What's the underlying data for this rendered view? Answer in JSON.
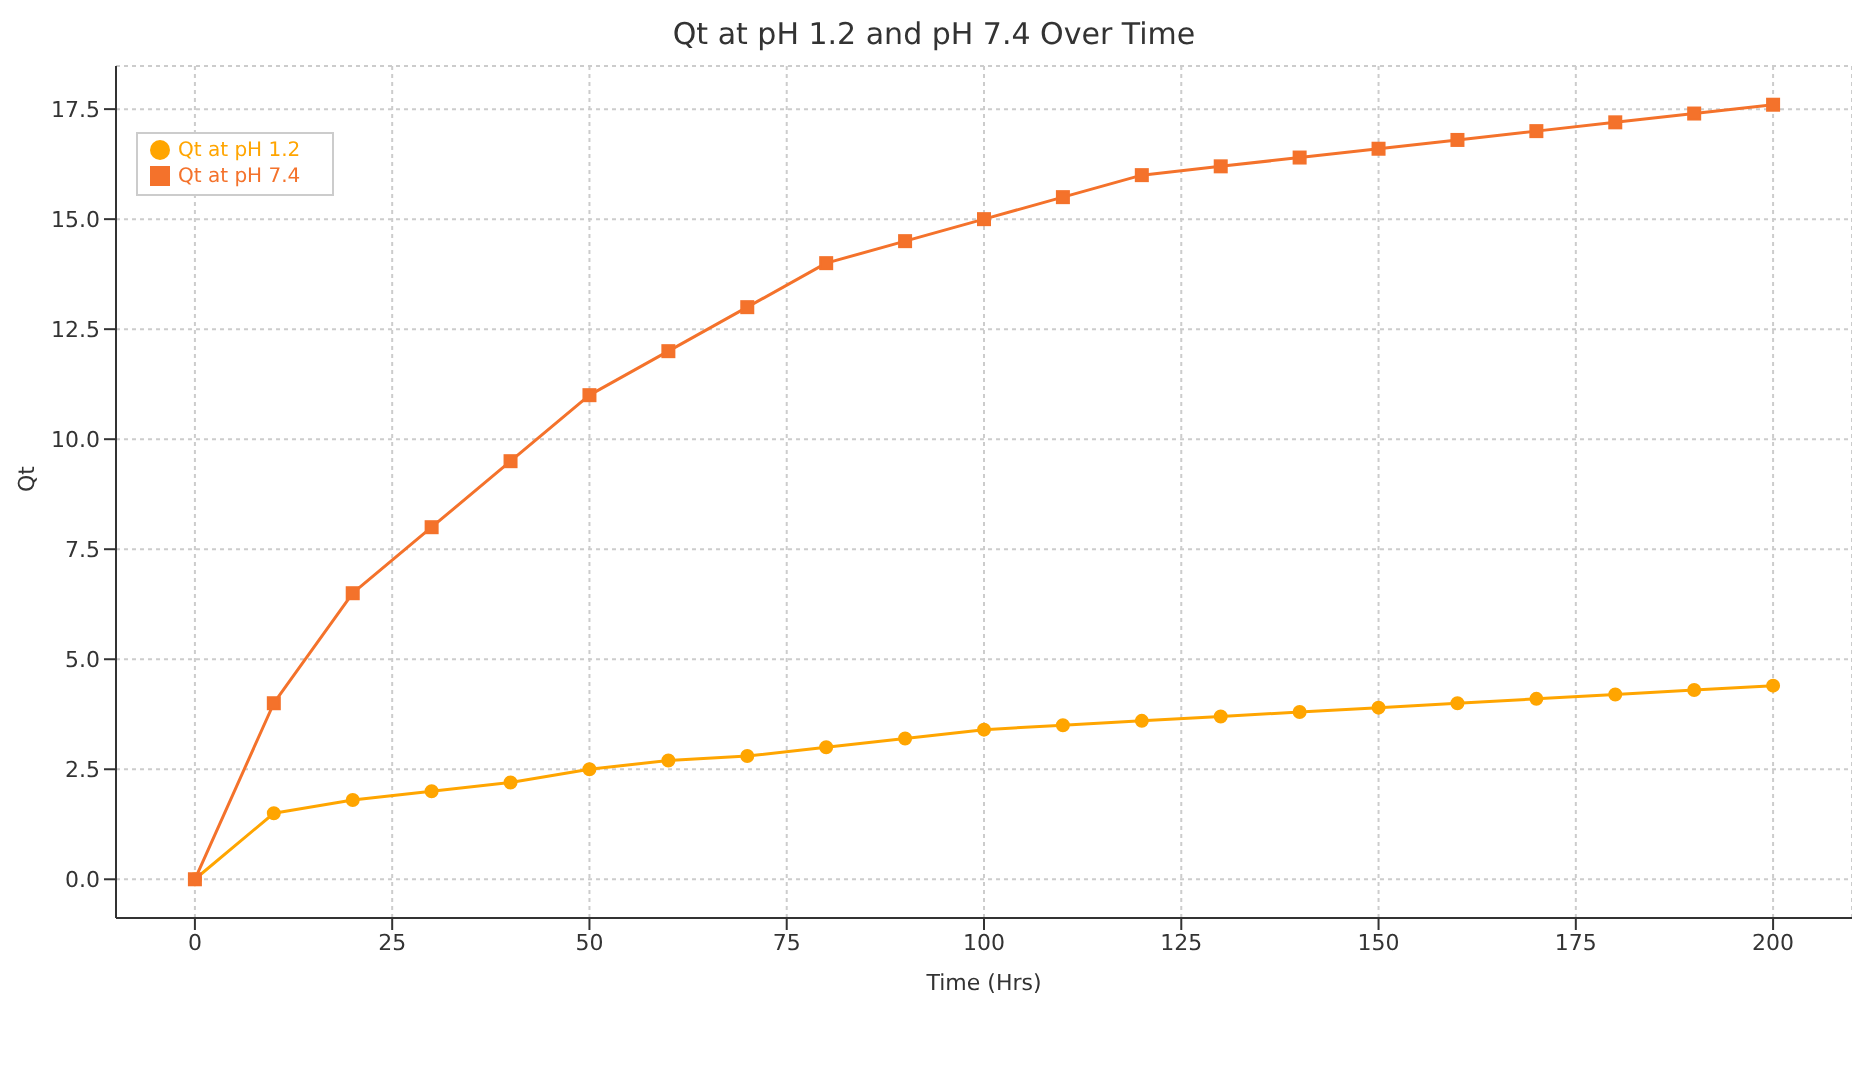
{
  "chart_data": {
    "type": "line",
    "title": "Qt at pH 1.2 and pH 7.4 Over Time",
    "xlabel": "Time (Hrs)",
    "ylabel": "Qt",
    "x": [
      0,
      10,
      20,
      30,
      40,
      50,
      60,
      70,
      80,
      90,
      100,
      110,
      120,
      130,
      140,
      150,
      160,
      170,
      180,
      190,
      200
    ],
    "series": [
      {
        "name": "Qt at pH 1.2",
        "color": "#ffa500",
        "marker": "circle",
        "values": [
          0,
          1.5,
          1.8,
          2.0,
          2.2,
          2.5,
          2.7,
          2.8,
          3.0,
          3.2,
          3.4,
          3.5,
          3.6,
          3.7,
          3.8,
          3.9,
          4.0,
          4.1,
          4.2,
          4.3,
          4.4
        ]
      },
      {
        "name": "Qt at pH 7.4",
        "color": "#f4722b",
        "marker": "square",
        "values": [
          0,
          4,
          6.5,
          8,
          9.5,
          11,
          12,
          13,
          14,
          14.5,
          15,
          15.5,
          16,
          16.2,
          16.4,
          16.6,
          16.8,
          17.0,
          17.2,
          17.4,
          17.6
        ]
      }
    ],
    "xlim": [
      -10,
      210
    ],
    "xticks": [
      0,
      25,
      50,
      75,
      100,
      125,
      150,
      175,
      200
    ],
    "ylim": [
      -0.88,
      18.48
    ],
    "yticks": [
      {
        "value": 0,
        "label": "0.0"
      },
      {
        "value": 2.5,
        "label": "2.5"
      },
      {
        "value": 5,
        "label": "5.0"
      },
      {
        "value": 7.5,
        "label": "7.5"
      },
      {
        "value": 10,
        "label": "10.0"
      },
      {
        "value": 12.5,
        "label": "12.5"
      },
      {
        "value": 15,
        "label": "15.0"
      },
      {
        "value": 17.5,
        "label": "17.5"
      }
    ],
    "grid": true,
    "legend": "top left",
    "line_style": "solid"
  }
}
